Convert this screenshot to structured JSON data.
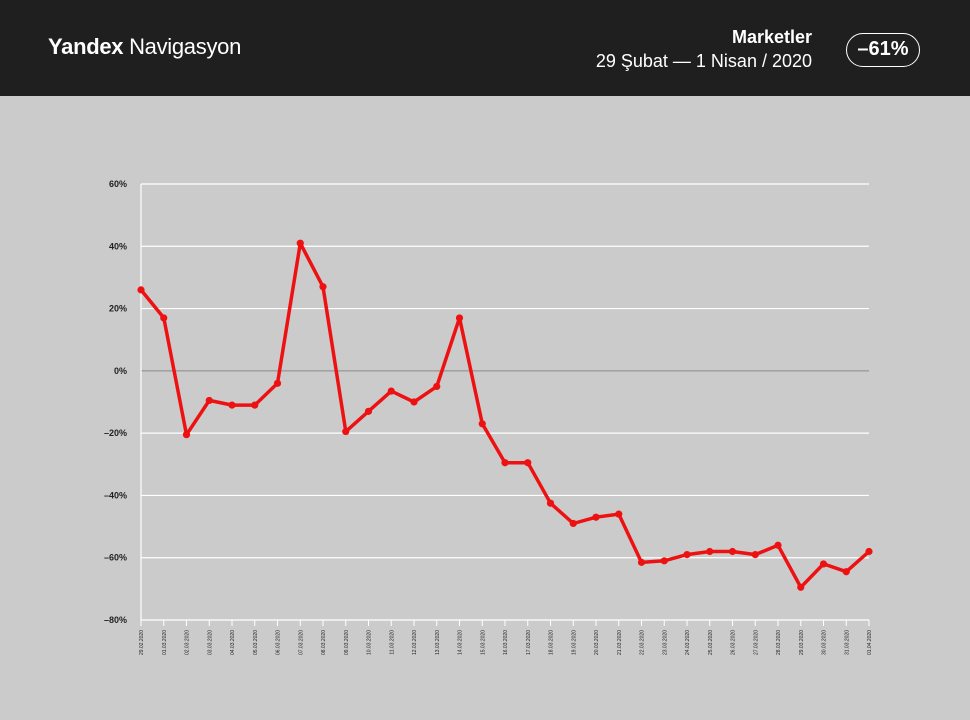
{
  "header": {
    "brand_bold": "Yandex",
    "brand_rest": "Navigasyon",
    "title": "Marketler",
    "date_range": "29 Şubat  —  1 Nisan / 2020",
    "change_badge": "–61%"
  },
  "colors": {
    "header_bg": "#1f1f1f",
    "plot_bg": "#cbcbcb",
    "line": "#ee1111",
    "grid": "#ffffff",
    "zero_line": "#8a8a8a"
  },
  "chart_data": {
    "type": "line",
    "title": "Marketler",
    "ylim": [
      -80,
      60
    ],
    "y_ticks": [
      60,
      40,
      20,
      0,
      -20,
      -40,
      -60,
      -80
    ],
    "y_tick_labels": [
      "60%",
      "40%",
      "20%",
      "0%",
      "–20%",
      "–40%",
      "–60%",
      "–80%"
    ],
    "grid": true,
    "categories": [
      "29.02.2020",
      "01.03.2020",
      "02.03.2020",
      "03.03.2020",
      "04.03.2020",
      "05.03.2020",
      "06.03.2020",
      "07.03.2020",
      "08.03.2020",
      "09.03.2020",
      "10.03.2020",
      "11.03.2020",
      "12.03.2020",
      "13.03.2020",
      "14.03.2020",
      "15.03.2020",
      "16.03.2020",
      "17.03.2020",
      "18.03.2020",
      "19.03.2020",
      "20.03.2020",
      "21.03.2020",
      "22.03.2020",
      "23.03.2020",
      "24.03.2020",
      "25.03.2020",
      "26.03.2020",
      "27.03.2020",
      "28.03.2020",
      "29.03.2020",
      "30.03.2020",
      "31.03.2020",
      "01.04.2020"
    ],
    "values": [
      26,
      17,
      -20.5,
      -9.5,
      -11,
      -11,
      -4,
      41,
      27,
      -19.5,
      -13,
      -6.5,
      -10,
      -5,
      17,
      -17,
      -29.5,
      -29.5,
      -42.5,
      -49,
      -47,
      -46,
      -61.5,
      -61,
      -59,
      -58,
      -58,
      -59,
      -56,
      -69.5,
      -62,
      -64.5,
      -58
    ]
  }
}
